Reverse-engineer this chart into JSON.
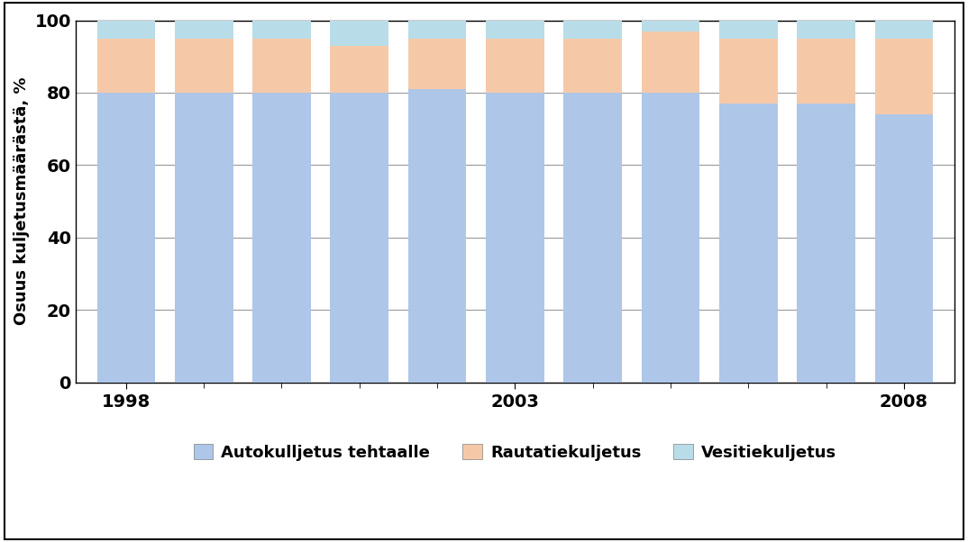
{
  "years": [
    1998,
    1999,
    2000,
    2001,
    2002,
    2003,
    2004,
    2005,
    2006,
    2007,
    2008
  ],
  "auto": [
    80,
    80,
    80,
    80,
    81,
    80,
    80,
    80,
    77,
    77,
    74
  ],
  "rautatie": [
    15,
    15,
    15,
    13,
    14,
    15,
    15,
    17,
    18,
    18,
    21
  ],
  "vesitie": [
    5,
    5,
    5,
    7,
    5,
    5,
    5,
    3,
    5,
    5,
    5
  ],
  "color_auto": "#aec6e8",
  "color_rautatie": "#f5c9a8",
  "color_vesitie": "#b8dde8",
  "ylabel": "Osuus kuljetusmäärästä, %",
  "legend_auto": "Autokulljetus tehtaalle",
  "legend_rautatie": "Rautatiekuljetus",
  "legend_vesitie": "Vesitiekuljetus",
  "ylim": [
    0,
    100
  ],
  "background_color": "#ffffff",
  "bar_width": 0.75,
  "grid_color": "#999999",
  "major_xtick_years": [
    1998,
    2003,
    2008
  ],
  "figure_border_color": "#000000"
}
